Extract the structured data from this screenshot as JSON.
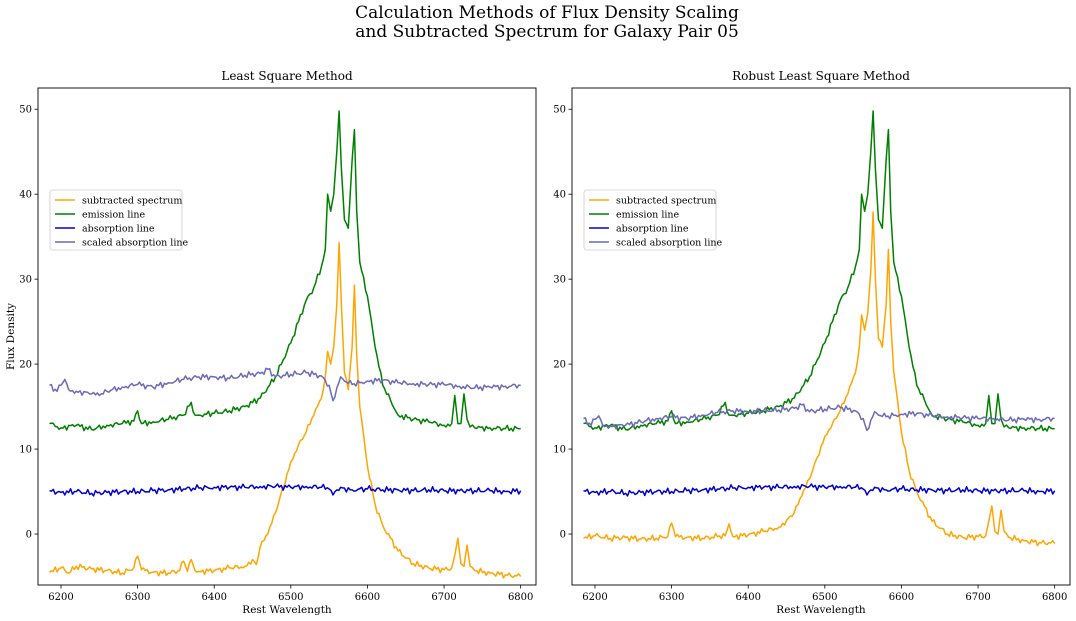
{
  "figure": {
    "title_line1": "Calculation Methods of Flux Density Scaling",
    "title_line2": "and Subtracted Spectrum for Galaxy Pair 05"
  },
  "chart_data": [
    {
      "type": "line",
      "title": "Least Square Method",
      "xlabel": "Rest Wavelength",
      "ylabel": "Flux Density",
      "xlim": [
        6170,
        6820
      ],
      "ylim": [
        -6,
        52.5
      ],
      "xticks": [
        6200,
        6300,
        6400,
        6500,
        6600,
        6700,
        6800
      ],
      "yticks": [
        0,
        10,
        20,
        30,
        40,
        50
      ],
      "legend_position": "upper-left",
      "grid": false,
      "series": [
        {
          "name": "subtracted spectrum",
          "color": "#ffa500",
          "x": [
            6185,
            6200,
            6210,
            6220,
            6240,
            6260,
            6280,
            6295,
            6300,
            6305,
            6320,
            6340,
            6355,
            6360,
            6365,
            6370,
            6375,
            6380,
            6400,
            6420,
            6440,
            6450,
            6455,
            6460,
            6470,
            6480,
            6490,
            6500,
            6510,
            6520,
            6530,
            6540,
            6545,
            6548,
            6552,
            6556,
            6560,
            6563,
            6566,
            6570,
            6575,
            6580,
            6583,
            6586,
            6590,
            6600,
            6610,
            6620,
            6640,
            6660,
            6680,
            6700,
            6710,
            6714,
            6718,
            6722,
            6726,
            6730,
            6734,
            6740,
            6760,
            6780,
            6800
          ],
          "y": [
            -4.5,
            -4.0,
            -4.6,
            -3.8,
            -4.1,
            -4.3,
            -4.6,
            -4.0,
            -2.6,
            -4.2,
            -4.5,
            -4.6,
            -4.3,
            -3.2,
            -4.4,
            -3.0,
            -4.3,
            -4.4,
            -4.3,
            -4.0,
            -3.8,
            -3.0,
            -3.6,
            -1.5,
            0.0,
            2.5,
            5.5,
            8.5,
            10.5,
            12.0,
            14.0,
            16.0,
            18.5,
            21.5,
            20.0,
            22.0,
            27.0,
            34.3,
            27.0,
            19.0,
            17.0,
            22.0,
            29.3,
            21.0,
            15.0,
            8.0,
            3.5,
            1.0,
            -2.0,
            -3.5,
            -4.0,
            -4.2,
            -4.0,
            -2.5,
            -0.5,
            -3.5,
            -3.8,
            -1.3,
            -3.8,
            -4.3,
            -4.6,
            -4.8,
            -5.0
          ]
        },
        {
          "name": "emission line",
          "color": "#008000",
          "x": [
            6185,
            6200,
            6220,
            6240,
            6260,
            6280,
            6295,
            6300,
            6305,
            6320,
            6340,
            6360,
            6370,
            6375,
            6380,
            6400,
            6420,
            6440,
            6460,
            6480,
            6500,
            6510,
            6520,
            6530,
            6540,
            6545,
            6548,
            6552,
            6556,
            6560,
            6563,
            6566,
            6570,
            6575,
            6580,
            6583,
            6586,
            6590,
            6600,
            6610,
            6620,
            6640,
            6660,
            6680,
            6700,
            6710,
            6714,
            6718,
            6722,
            6726,
            6730,
            6734,
            6740,
            6760,
            6780,
            6800
          ],
          "y": [
            13.0,
            12.5,
            12.8,
            12.3,
            12.8,
            13.0,
            13.3,
            14.5,
            13.0,
            13.2,
            13.5,
            14.0,
            15.5,
            14.0,
            14.0,
            14.2,
            14.5,
            15.0,
            16.0,
            18.5,
            22.5,
            25.0,
            27.5,
            29.0,
            31.5,
            33.5,
            40.0,
            38.0,
            40.0,
            45.0,
            49.8,
            43.0,
            37.0,
            36.0,
            44.0,
            47.6,
            38.0,
            32.0,
            28.0,
            22.0,
            17.5,
            14.0,
            13.5,
            13.2,
            12.8,
            13.0,
            16.3,
            13.0,
            13.0,
            16.5,
            13.5,
            12.6,
            12.5,
            12.5,
            12.4,
            12.4
          ]
        },
        {
          "name": "absorption line",
          "color": "#0000cd",
          "x": [
            6185,
            6200,
            6220,
            6240,
            6260,
            6280,
            6300,
            6320,
            6340,
            6360,
            6380,
            6400,
            6420,
            6440,
            6460,
            6480,
            6500,
            6520,
            6540,
            6550,
            6555,
            6560,
            6565,
            6570,
            6580,
            6600,
            6620,
            6640,
            6660,
            6680,
            6700,
            6720,
            6740,
            6760,
            6780,
            6800
          ],
          "y": [
            5.1,
            4.9,
            5.0,
            4.8,
            4.9,
            5.0,
            5.0,
            5.1,
            5.2,
            5.3,
            5.4,
            5.5,
            5.5,
            5.5,
            5.6,
            5.6,
            5.5,
            5.6,
            5.5,
            5.3,
            4.6,
            5.2,
            5.5,
            5.4,
            5.2,
            5.3,
            5.2,
            5.2,
            5.1,
            5.2,
            5.1,
            5.1,
            5.1,
            5.1,
            5.0,
            5.1
          ]
        },
        {
          "name": "scaled absorption line",
          "color": "#6a6ab8",
          "x": [
            6185,
            6195,
            6200,
            6205,
            6210,
            6220,
            6240,
            6250,
            6260,
            6280,
            6300,
            6320,
            6340,
            6360,
            6380,
            6400,
            6420,
            6440,
            6460,
            6470,
            6480,
            6500,
            6520,
            6540,
            6550,
            6555,
            6560,
            6565,
            6570,
            6580,
            6600,
            6620,
            6640,
            6660,
            6680,
            6700,
            6720,
            6740,
            6760,
            6780,
            6800
          ],
          "y": [
            17.5,
            16.8,
            17.5,
            18.2,
            17.0,
            16.8,
            16.5,
            16.3,
            16.8,
            17.3,
            17.6,
            17.3,
            17.8,
            18.2,
            18.5,
            18.5,
            18.3,
            18.7,
            18.9,
            19.4,
            18.5,
            18.8,
            19.0,
            18.6,
            17.5,
            15.7,
            17.2,
            18.5,
            18.0,
            17.6,
            18.0,
            18.1,
            17.8,
            17.7,
            17.6,
            17.6,
            17.4,
            17.2,
            17.3,
            17.4,
            17.5
          ]
        }
      ]
    },
    {
      "type": "line",
      "title": "Robust Least Square Method",
      "xlabel": "Rest Wavelength",
      "ylabel": "",
      "xlim": [
        6170,
        6820
      ],
      "ylim": [
        -6,
        52.5
      ],
      "xticks": [
        6200,
        6300,
        6400,
        6500,
        6600,
        6700,
        6800
      ],
      "yticks": [
        0,
        10,
        20,
        30,
        40,
        50
      ],
      "legend_position": "upper-left",
      "grid": false,
      "series": [
        {
          "name": "subtracted spectrum",
          "color": "#ffa500",
          "x": [
            6185,
            6200,
            6220,
            6240,
            6260,
            6280,
            6295,
            6300,
            6305,
            6320,
            6340,
            6360,
            6370,
            6375,
            6380,
            6400,
            6420,
            6440,
            6450,
            6460,
            6470,
            6480,
            6490,
            6500,
            6510,
            6520,
            6530,
            6540,
            6545,
            6548,
            6552,
            6556,
            6560,
            6563,
            6566,
            6570,
            6575,
            6580,
            6583,
            6586,
            6590,
            6600,
            6610,
            6620,
            6640,
            6660,
            6680,
            6700,
            6710,
            6714,
            6718,
            6722,
            6726,
            6730,
            6734,
            6740,
            6760,
            6780,
            6800
          ],
          "y": [
            -0.5,
            -0.2,
            -0.5,
            -0.4,
            -0.6,
            -0.5,
            -0.3,
            1.3,
            -0.3,
            -0.4,
            -0.5,
            -0.3,
            -0.2,
            1.2,
            -0.3,
            -0.1,
            0.3,
            0.8,
            1.6,
            2.5,
            4.5,
            6.5,
            9.0,
            11.5,
            13.0,
            14.5,
            16.5,
            19.0,
            22.0,
            25.8,
            24.0,
            26.0,
            31.0,
            37.9,
            30.0,
            23.0,
            22.0,
            27.0,
            33.5,
            25.0,
            19.0,
            12.0,
            7.5,
            5.0,
            1.5,
            0.0,
            -0.4,
            -0.3,
            -0.2,
            1.5,
            3.3,
            0.3,
            0.0,
            2.8,
            0.3,
            -0.4,
            -0.8,
            -1.0,
            -1.1
          ]
        },
        {
          "name": "emission line",
          "color": "#008000",
          "x": [
            6185,
            6200,
            6220,
            6240,
            6260,
            6280,
            6295,
            6300,
            6305,
            6320,
            6340,
            6360,
            6370,
            6375,
            6380,
            6400,
            6420,
            6440,
            6460,
            6480,
            6500,
            6510,
            6520,
            6530,
            6540,
            6545,
            6548,
            6552,
            6556,
            6560,
            6563,
            6566,
            6570,
            6575,
            6580,
            6583,
            6586,
            6590,
            6600,
            6610,
            6620,
            6640,
            6660,
            6680,
            6700,
            6710,
            6714,
            6718,
            6722,
            6726,
            6730,
            6734,
            6740,
            6760,
            6780,
            6800
          ],
          "y": [
            13.0,
            12.5,
            12.8,
            12.3,
            12.8,
            13.0,
            13.3,
            14.5,
            13.0,
            13.2,
            13.5,
            14.0,
            15.5,
            14.0,
            14.0,
            14.2,
            14.5,
            15.0,
            16.0,
            18.5,
            22.5,
            25.0,
            27.5,
            29.0,
            31.5,
            33.5,
            40.0,
            38.0,
            40.0,
            45.0,
            49.8,
            43.0,
            37.0,
            36.0,
            44.0,
            47.6,
            38.0,
            32.0,
            28.0,
            22.0,
            17.5,
            14.0,
            13.5,
            13.2,
            12.8,
            13.0,
            16.3,
            13.0,
            13.0,
            16.5,
            13.5,
            12.6,
            12.5,
            12.5,
            12.4,
            12.4
          ]
        },
        {
          "name": "absorption line",
          "color": "#0000cd",
          "x": [
            6185,
            6200,
            6220,
            6240,
            6260,
            6280,
            6300,
            6320,
            6340,
            6360,
            6380,
            6400,
            6420,
            6440,
            6460,
            6480,
            6500,
            6520,
            6540,
            6550,
            6555,
            6560,
            6565,
            6570,
            6580,
            6600,
            6620,
            6640,
            6660,
            6680,
            6700,
            6720,
            6740,
            6760,
            6780,
            6800
          ],
          "y": [
            5.1,
            4.9,
            5.0,
            4.8,
            4.9,
            5.0,
            5.0,
            5.1,
            5.2,
            5.3,
            5.4,
            5.5,
            5.5,
            5.5,
            5.6,
            5.6,
            5.5,
            5.6,
            5.5,
            5.3,
            4.6,
            5.2,
            5.5,
            5.4,
            5.2,
            5.3,
            5.2,
            5.2,
            5.1,
            5.2,
            5.1,
            5.1,
            5.1,
            5.1,
            5.0,
            5.1
          ]
        },
        {
          "name": "scaled absorption line",
          "color": "#6a6ab8",
          "x": [
            6185,
            6195,
            6200,
            6205,
            6210,
            6220,
            6240,
            6260,
            6280,
            6300,
            6320,
            6340,
            6360,
            6380,
            6400,
            6420,
            6440,
            6460,
            6470,
            6480,
            6500,
            6520,
            6540,
            6550,
            6555,
            6560,
            6565,
            6570,
            6580,
            6600,
            6620,
            6640,
            6660,
            6680,
            6700,
            6720,
            6740,
            6760,
            6780,
            6800
          ],
          "y": [
            13.6,
            12.8,
            13.5,
            13.9,
            12.8,
            12.7,
            12.8,
            13.2,
            13.6,
            13.8,
            13.6,
            14.0,
            14.3,
            14.5,
            14.4,
            14.5,
            14.6,
            14.8,
            15.2,
            14.4,
            14.7,
            14.9,
            14.5,
            13.6,
            12.2,
            13.4,
            14.4,
            14.0,
            13.8,
            14.1,
            14.2,
            13.9,
            13.8,
            13.7,
            13.6,
            13.6,
            13.4,
            13.5,
            13.5,
            13.6
          ]
        }
      ]
    }
  ]
}
